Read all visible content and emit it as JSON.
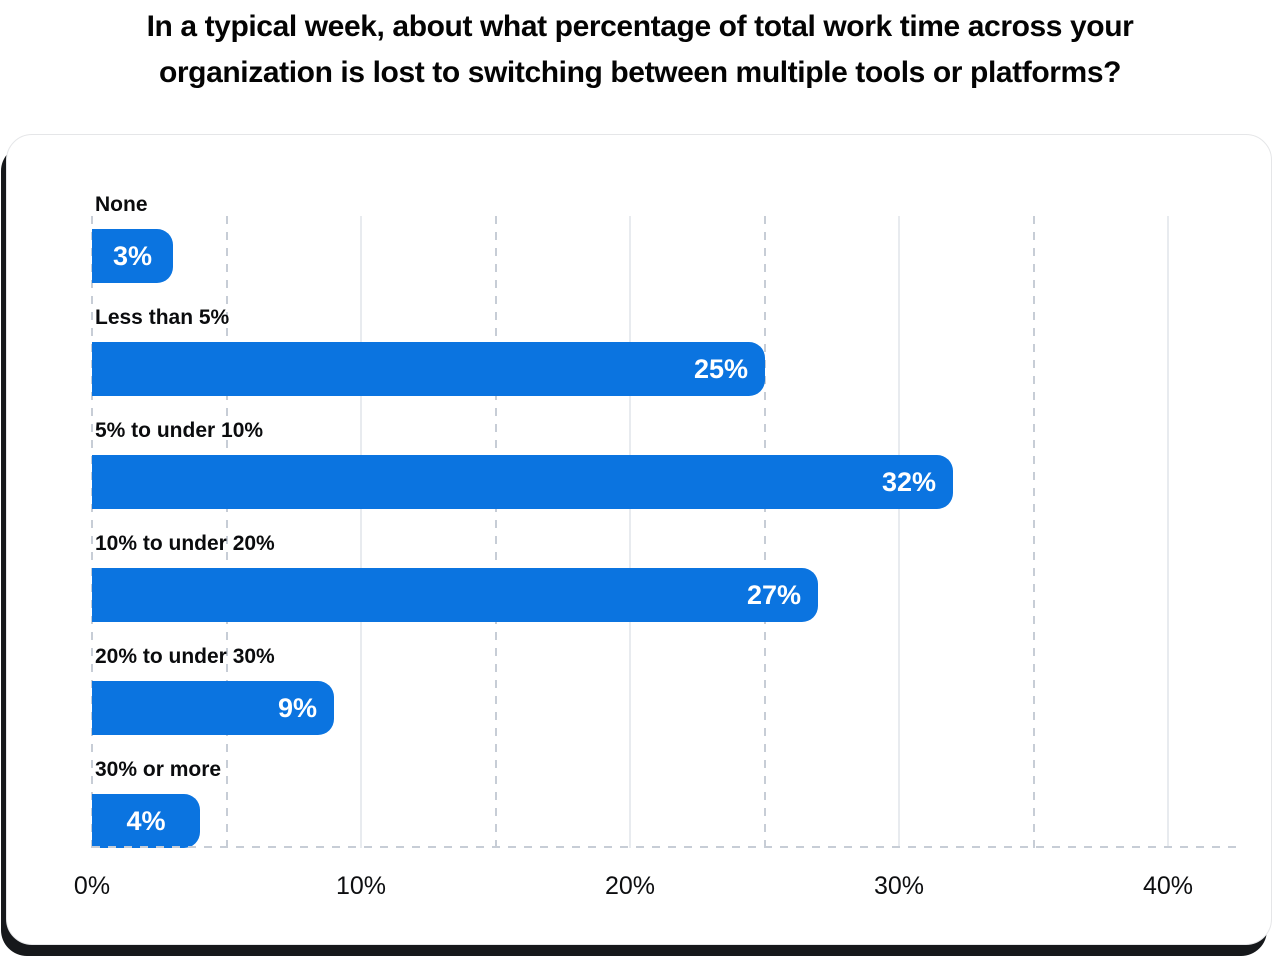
{
  "title": {
    "lines": [
      "In a typical week, about what percentage of total work time across your",
      "organization is lost to switching between multiple tools or platforms?"
    ]
  },
  "chart_data": {
    "type": "bar",
    "orientation": "horizontal",
    "title": "In a typical week, about what percentage of total work time across your organization is lost to switching between multiple tools or platforms?",
    "categories": [
      "None",
      "Less than 5%",
      "5% to under 10%",
      "10% to under 20%",
      "20% to under 30%",
      "30% or more"
    ],
    "values": [
      3,
      25,
      32,
      27,
      9,
      4
    ],
    "value_labels": [
      "3%",
      "25%",
      "32%",
      "27%",
      "9%",
      "4%"
    ],
    "xlabel": "",
    "ylabel": "",
    "xlim": [
      0,
      40
    ],
    "x_ticks": [
      {
        "value": 0,
        "label": "0%"
      },
      {
        "value": 10,
        "label": "10%"
      },
      {
        "value": 20,
        "label": "20%"
      },
      {
        "value": 30,
        "label": "30%"
      },
      {
        "value": 40,
        "label": "40%"
      }
    ],
    "grid": true,
    "grid_minor_step": 5,
    "grid_major_step": 10,
    "legend": false
  },
  "colors": {
    "bar": "#0b74e0",
    "bar_value_text": "#ffffff",
    "grid_dashed": "#c7cdd6",
    "grid_solid": "#e8ebef",
    "text": "#0b0c0e",
    "title_text": "#040404",
    "card_background": "#ffffff",
    "card_border": "#e5e6e8",
    "card_shadow": "#16181b",
    "page_background": "#ffffff"
  }
}
